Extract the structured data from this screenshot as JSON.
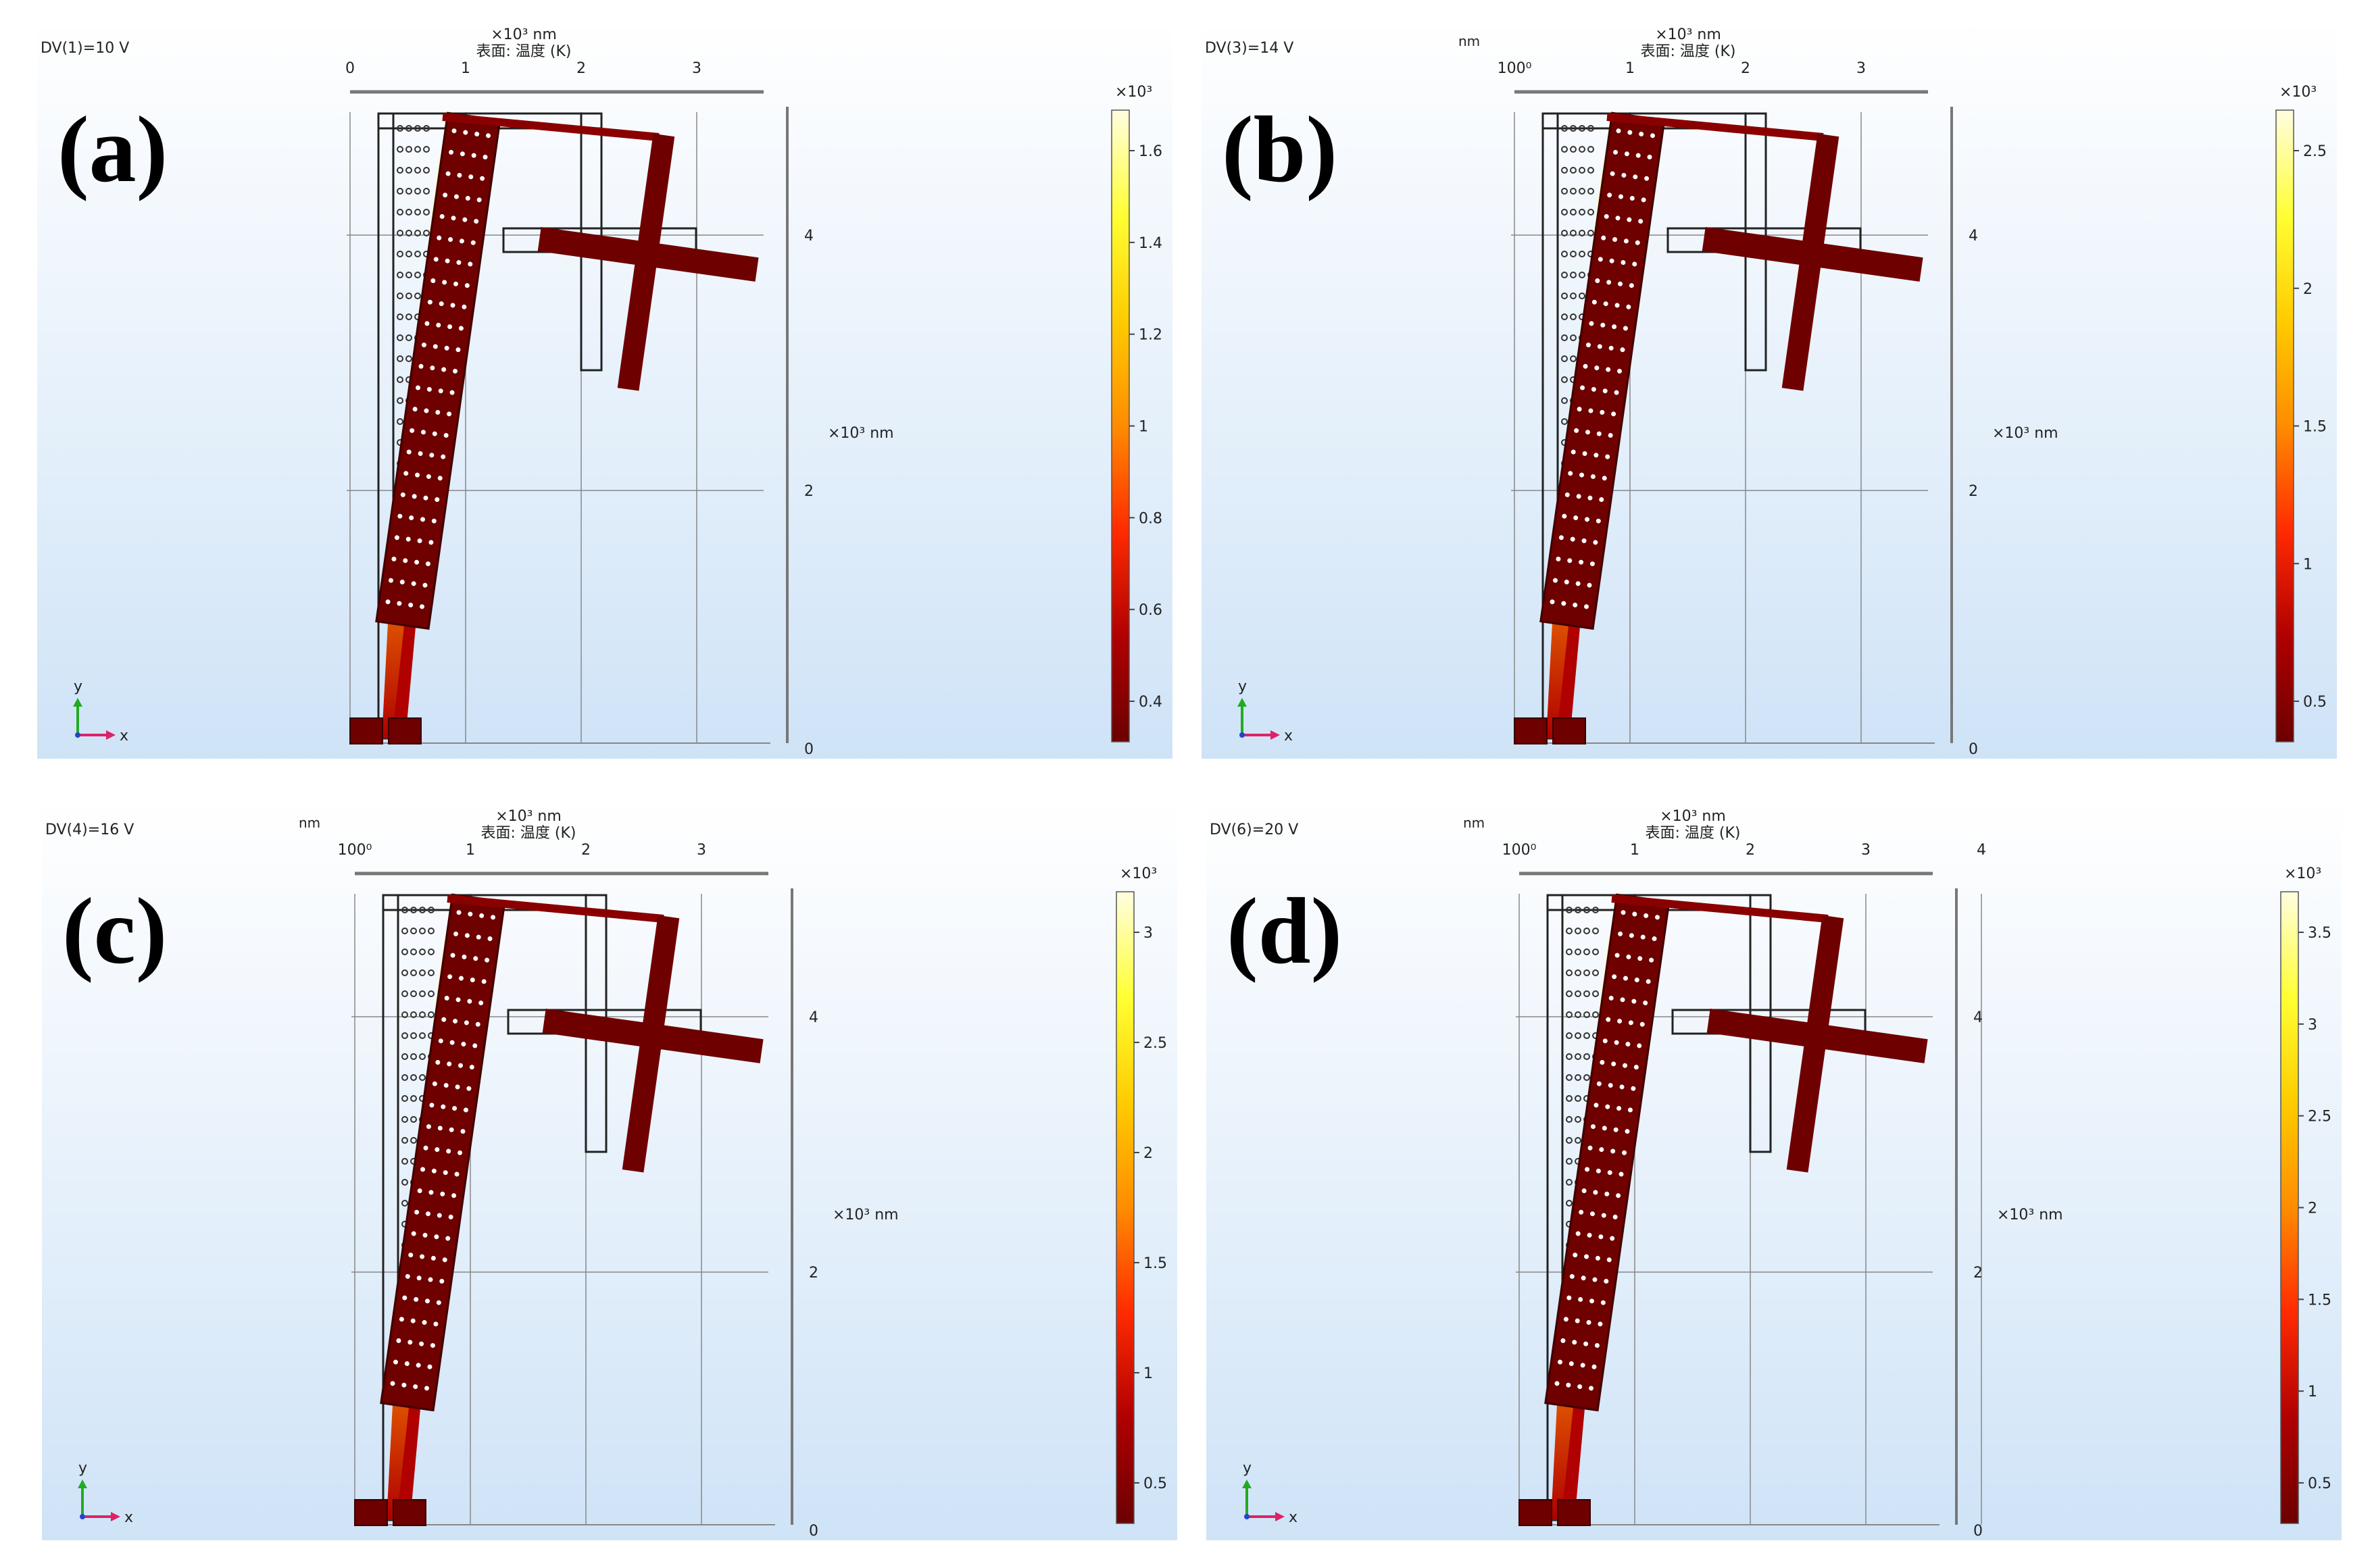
{
  "colorbar_colors": [
    "#6b0000",
    "#b00000",
    "#ff2a00",
    "#ff8c00",
    "#ffcc00",
    "#ffff33",
    "#fffde0"
  ],
  "panels": [
    {
      "label": "(a)",
      "condition": "DV(1)=10 V",
      "top_unit": "×10³ nm",
      "top_unit_left": "",
      "surface_label": "表面: 温度 (K)",
      "x_ticks": [
        "0",
        "1",
        "2",
        "3"
      ],
      "y_ticks": [
        "4",
        "2",
        "0"
      ],
      "y_unit": "×10³ nm",
      "cb_unit": "×10³",
      "cb_ticks": [
        "1.6",
        "1.4",
        "1.2",
        "1",
        "0.8",
        "0.6",
        "0.4"
      ],
      "axis_y": "y",
      "axis_x": "x"
    },
    {
      "label": "(b)",
      "condition": "DV(3)=14 V",
      "top_unit": "×10³ nm",
      "top_unit_left": "nm",
      "surface_label": "表面: 温度 (K)",
      "x_ticks": [
        "100⁰",
        "1",
        "2",
        "3"
      ],
      "y_ticks": [
        "4",
        "2",
        "0"
      ],
      "y_unit": "×10³ nm",
      "cb_unit": "×10³",
      "cb_ticks": [
        "2.5",
        "2",
        "1.5",
        "1",
        "0.5"
      ],
      "axis_y": "y",
      "axis_x": "x"
    },
    {
      "label": "(c)",
      "condition": "DV(4)=16 V",
      "top_unit": "×10³ nm",
      "top_unit_left": "nm",
      "surface_label": "表面: 温度 (K)",
      "x_ticks": [
        "100⁰",
        "1",
        "2",
        "3"
      ],
      "y_ticks": [
        "4",
        "2",
        "0"
      ],
      "y_unit": "×10³ nm",
      "cb_unit": "×10³",
      "cb_ticks": [
        "3",
        "2.5",
        "2",
        "1.5",
        "1",
        "0.5"
      ],
      "axis_y": "y",
      "axis_x": "x"
    },
    {
      "label": "(d)",
      "condition": "DV(6)=20 V",
      "top_unit": "×10³ nm",
      "top_unit_left": "nm",
      "surface_label": "表面: 温度 (K)",
      "x_ticks": [
        "100⁰",
        "1",
        "2",
        "3",
        "4"
      ],
      "y_ticks": [
        "4",
        "2",
        "0"
      ],
      "y_unit": "×10³ nm",
      "cb_unit": "×10³",
      "cb_ticks": [
        "3.5",
        "3",
        "2.5",
        "2",
        "1.5",
        "1",
        "0.5"
      ],
      "axis_y": "y",
      "axis_x": "x"
    }
  ]
}
